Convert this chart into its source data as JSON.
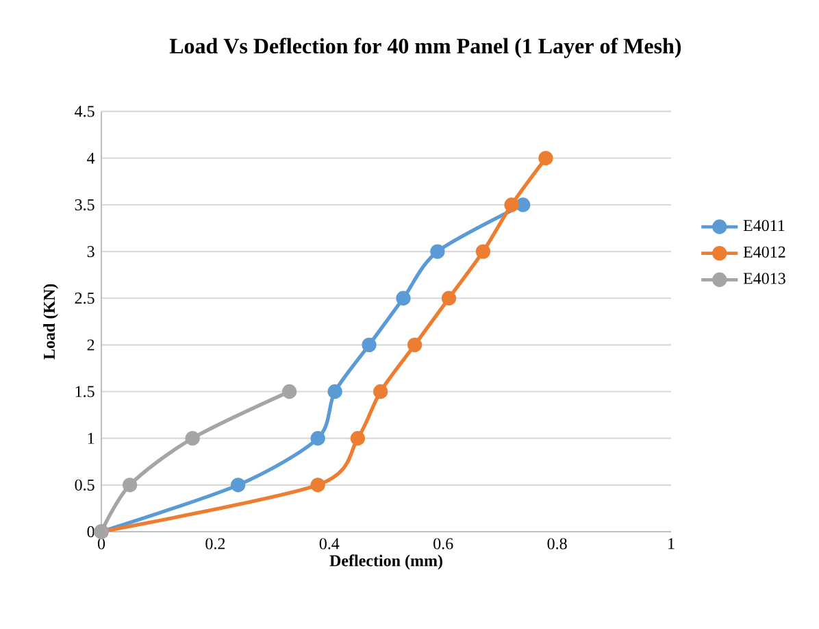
{
  "chart_data": {
    "type": "line",
    "title": "Load Vs Deflection for 40 mm Panel (1 Layer of Mesh)",
    "xlabel": "Deflection (mm)",
    "ylabel": "Load (KN)",
    "xlim": [
      0,
      1
    ],
    "xticks": [
      0,
      0.2,
      0.4,
      0.6,
      0.8,
      1
    ],
    "ylim": [
      0,
      4.5
    ],
    "yticks": [
      0,
      0.5,
      1,
      1.5,
      2,
      2.5,
      3,
      3.5,
      4,
      4.5
    ],
    "grid": "y",
    "legend": "right",
    "marker": "circle",
    "line_style": "solid",
    "series": [
      {
        "name": "E4011",
        "color": "#5b9bd5",
        "x": [
          0,
          0.24,
          0.38,
          0.41,
          0.47,
          0.53,
          0.59,
          0.74
        ],
        "values": [
          0,
          0.5,
          1,
          1.5,
          2,
          2.5,
          3,
          3.5
        ]
      },
      {
        "name": "E4012",
        "color": "#ed7d31",
        "x": [
          0,
          0.38,
          0.45,
          0.49,
          0.55,
          0.61,
          0.67,
          0.72,
          0.78
        ],
        "values": [
          0,
          0.5,
          1,
          1.5,
          2,
          2.5,
          3,
          3.5,
          4
        ]
      },
      {
        "name": "E4013",
        "color": "#a5a5a5",
        "x": [
          0,
          0.05,
          0.16,
          0.33
        ],
        "values": [
          0,
          0.5,
          1,
          1.5
        ]
      }
    ]
  }
}
